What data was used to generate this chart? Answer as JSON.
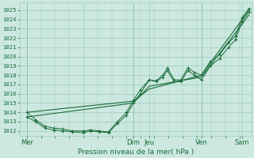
{
  "title": "Pression niveau de la mer( hPa )",
  "ylabel_ticks": [
    1012,
    1013,
    1014,
    1015,
    1016,
    1017,
    1018,
    1019,
    1020,
    1021,
    1022,
    1023,
    1024,
    1025
  ],
  "ylim": [
    1011.5,
    1025.8
  ],
  "xlim": [
    0,
    102
  ],
  "xtick_positions": [
    3,
    28,
    50,
    57,
    80,
    98
  ],
  "xtick_labels": [
    "Mer",
    "",
    "Dim",
    "Jeu",
    "Ven",
    "Sam"
  ],
  "vline_positions": [
    3,
    50,
    80
  ],
  "background_color": "#cce8e0",
  "grid_color": "#99ccbb",
  "line_color": "#1a6b3a",
  "series_jagged1": {
    "x": [
      3,
      7,
      11,
      15,
      19,
      23,
      28,
      31,
      35,
      39,
      43,
      47,
      50,
      53,
      57,
      60,
      63,
      65,
      68,
      71,
      74,
      77,
      80,
      84,
      88,
      92,
      95,
      98,
      101
    ],
    "y": [
      1014.0,
      1013.2,
      1012.5,
      1012.3,
      1012.2,
      1012.0,
      1012.0,
      1012.1,
      1012.0,
      1011.9,
      1013.0,
      1014.0,
      1015.3,
      1016.4,
      1017.5,
      1017.4,
      1018.0,
      1018.8,
      1017.5,
      1017.5,
      1018.8,
      1018.3,
      1018.0,
      1019.5,
      1020.2,
      1021.5,
      1022.2,
      1024.2,
      1025.2
    ]
  },
  "series_jagged2": {
    "x": [
      3,
      7,
      11,
      15,
      19,
      23,
      28,
      31,
      35,
      39,
      43,
      47,
      50,
      53,
      57,
      60,
      63,
      65,
      68,
      71,
      74,
      77,
      80,
      84,
      88,
      92,
      95,
      98,
      101
    ],
    "y": [
      1013.5,
      1013.0,
      1012.3,
      1012.1,
      1012.0,
      1011.9,
      1011.8,
      1012.0,
      1011.9,
      1011.8,
      1012.8,
      1013.7,
      1015.0,
      1016.0,
      1017.5,
      1017.3,
      1017.8,
      1018.5,
      1017.3,
      1017.3,
      1018.5,
      1018.0,
      1017.5,
      1019.0,
      1019.8,
      1021.0,
      1021.8,
      1023.8,
      1024.8
    ]
  },
  "series_smooth1": {
    "x": [
      3,
      50,
      57,
      80,
      98,
      101
    ],
    "y": [
      1014.0,
      1015.2,
      1016.5,
      1018.0,
      1024.0,
      1025.0
    ]
  },
  "series_smooth2": {
    "x": [
      3,
      50,
      57,
      80,
      98,
      101
    ],
    "y": [
      1013.5,
      1015.0,
      1016.8,
      1017.8,
      1023.5,
      1024.5
    ]
  }
}
